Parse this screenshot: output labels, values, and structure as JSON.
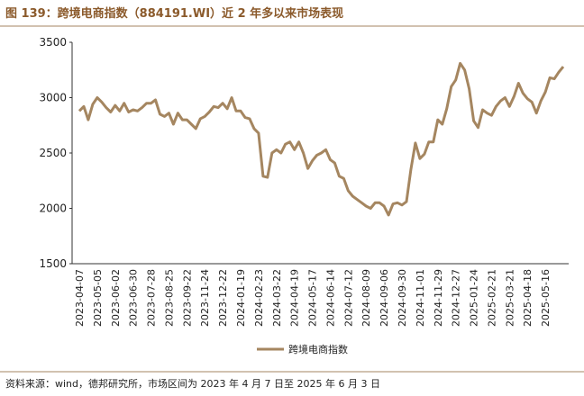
{
  "chart_data": {
    "type": "line",
    "title": "图 139：跨境电商指数（884191.WI）近 2 年多以来市场表现",
    "source": "资料来源：wind，德邦研究所，市场区间为 2023 年 4 月 7 日至 2025 年 6 月 3 日",
    "categories": [
      "2023-04-07",
      null,
      null,
      null,
      "2023-05-05",
      null,
      null,
      null,
      "2023-06-02",
      null,
      null,
      null,
      "2023-06-30",
      null,
      null,
      null,
      "2023-07-28",
      null,
      null,
      null,
      "2023-08-25",
      null,
      null,
      null,
      "2023-09-22",
      null,
      null,
      null,
      "2023-11-24",
      null,
      null,
      null,
      "2023-12-22",
      null,
      null,
      null,
      "2024-01-19",
      null,
      null,
      null,
      "2024-02-23",
      null,
      null,
      null,
      "2024-03-22",
      null,
      null,
      null,
      "2024-04-19",
      null,
      null,
      null,
      "2024-05-17",
      null,
      null,
      null,
      "2024-06-14",
      null,
      null,
      null,
      "2024-07-12",
      null,
      null,
      null,
      "2024-08-09",
      null,
      null,
      null,
      "2024-09-06",
      null,
      null,
      null,
      "2024-09-30",
      null,
      null,
      null,
      "2024-11-01",
      null,
      null,
      null,
      "2024-11-29",
      null,
      null,
      null,
      "2024-12-27",
      null,
      null,
      null,
      "2025-01-24",
      null,
      null,
      null,
      "2025-02-21",
      null,
      null,
      null,
      "2025-03-21",
      null,
      null,
      null,
      "2025-04-18",
      null,
      null,
      null,
      "2025-05-16",
      null,
      null,
      null,
      null
    ],
    "series": [
      {
        "name": "跨境电商指数",
        "color": "#a58660",
        "values": [
          2880,
          2920,
          2800,
          2940,
          3000,
          2960,
          2910,
          2870,
          2930,
          2880,
          2950,
          2870,
          2890,
          2880,
          2910,
          2950,
          2950,
          2980,
          2850,
          2830,
          2860,
          2760,
          2860,
          2800,
          2800,
          2760,
          2720,
          2810,
          2830,
          2870,
          2920,
          2910,
          2950,
          2900,
          3000,
          2880,
          2880,
          2820,
          2810,
          2720,
          2680,
          2290,
          2280,
          2500,
          2530,
          2500,
          2580,
          2600,
          2530,
          2600,
          2500,
          2360,
          2430,
          2480,
          2500,
          2530,
          2440,
          2410,
          2290,
          2270,
          2160,
          2110,
          2080,
          2050,
          2020,
          2000,
          2050,
          2050,
          2020,
          1940,
          2040,
          2050,
          2030,
          2060,
          2350,
          2590,
          2450,
          2490,
          2600,
          2600,
          2800,
          2760,
          2900,
          3100,
          3160,
          3310,
          3250,
          3080,
          2790,
          2730,
          2890,
          2860,
          2840,
          2920,
          2970,
          3000,
          2920,
          3010,
          3130,
          3040,
          2990,
          2960,
          2860,
          2970,
          3050,
          3180,
          3170,
          3230,
          3280
        ]
      }
    ],
    "ylim": [
      1500,
      3500
    ],
    "yticks": [
      1500,
      2000,
      2500,
      3000,
      3500
    ],
    "grid": false
  }
}
